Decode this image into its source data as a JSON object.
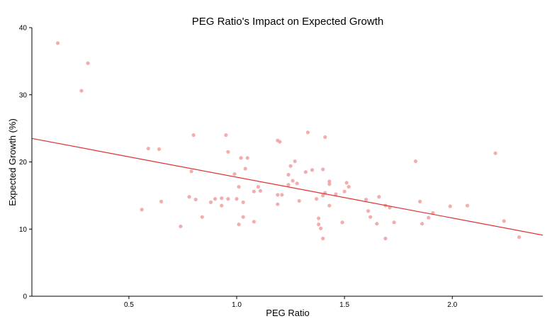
{
  "chart_data": {
    "type": "scatter",
    "title": "PEG Ratio's Impact on Expected Growth",
    "xlabel": "PEG Ratio",
    "ylabel": "Expected Growth (%)",
    "xlim": [
      0.05,
      2.42
    ],
    "ylim": [
      0,
      40
    ],
    "xticks": [
      0.5,
      1.0,
      1.5,
      2.0
    ],
    "xtick_labels": [
      "0.5",
      "1.0",
      "1.5",
      "2.0"
    ],
    "yticks": [
      0,
      10,
      20,
      30,
      40
    ],
    "ytick_labels": [
      "0",
      "10",
      "20",
      "30",
      "40"
    ],
    "grid": false,
    "point_color": "#f0a0a0",
    "line_color": "#e03030",
    "points": [
      {
        "x": 0.17,
        "y": 37.7
      },
      {
        "x": 0.31,
        "y": 34.7
      },
      {
        "x": 0.28,
        "y": 30.6
      },
      {
        "x": 0.59,
        "y": 22.0
      },
      {
        "x": 0.64,
        "y": 21.9
      },
      {
        "x": 0.8,
        "y": 24.0
      },
      {
        "x": 0.95,
        "y": 24.0
      },
      {
        "x": 0.96,
        "y": 21.5
      },
      {
        "x": 1.02,
        "y": 20.6
      },
      {
        "x": 1.05,
        "y": 20.6
      },
      {
        "x": 1.19,
        "y": 23.2
      },
      {
        "x": 1.2,
        "y": 23.0
      },
      {
        "x": 1.33,
        "y": 24.4
      },
      {
        "x": 1.41,
        "y": 23.7
      },
      {
        "x": 1.27,
        "y": 20.1
      },
      {
        "x": 1.83,
        "y": 20.1
      },
      {
        "x": 2.2,
        "y": 21.3
      },
      {
        "x": 0.79,
        "y": 18.6
      },
      {
        "x": 0.99,
        "y": 18.2
      },
      {
        "x": 1.04,
        "y": 19.0
      },
      {
        "x": 1.24,
        "y": 18.1
      },
      {
        "x": 1.25,
        "y": 19.4
      },
      {
        "x": 1.32,
        "y": 18.5
      },
      {
        "x": 1.35,
        "y": 18.8
      },
      {
        "x": 1.4,
        "y": 18.9
      },
      {
        "x": 1.26,
        "y": 17.2
      },
      {
        "x": 1.28,
        "y": 16.8
      },
      {
        "x": 1.43,
        "y": 17.1
      },
      {
        "x": 1.51,
        "y": 16.9
      },
      {
        "x": 1.43,
        "y": 16.7
      },
      {
        "x": 1.24,
        "y": 16.6
      },
      {
        "x": 1.52,
        "y": 16.3
      },
      {
        "x": 1.01,
        "y": 16.3
      },
      {
        "x": 1.1,
        "y": 16.3
      },
      {
        "x": 1.08,
        "y": 15.6
      },
      {
        "x": 1.11,
        "y": 15.7
      },
      {
        "x": 1.19,
        "y": 15.1
      },
      {
        "x": 1.21,
        "y": 15.1
      },
      {
        "x": 1.41,
        "y": 15.4
      },
      {
        "x": 1.4,
        "y": 15.0
      },
      {
        "x": 1.46,
        "y": 15.2
      },
      {
        "x": 1.5,
        "y": 15.6
      },
      {
        "x": 1.66,
        "y": 14.8
      },
      {
        "x": 0.78,
        "y": 14.8
      },
      {
        "x": 0.81,
        "y": 14.4
      },
      {
        "x": 0.9,
        "y": 14.5
      },
      {
        "x": 0.93,
        "y": 14.6
      },
      {
        "x": 0.96,
        "y": 14.5
      },
      {
        "x": 1.0,
        "y": 14.5
      },
      {
        "x": 0.65,
        "y": 14.1
      },
      {
        "x": 0.88,
        "y": 14.0
      },
      {
        "x": 1.03,
        "y": 14.0
      },
      {
        "x": 1.29,
        "y": 14.2
      },
      {
        "x": 1.37,
        "y": 14.5
      },
      {
        "x": 1.6,
        "y": 14.4
      },
      {
        "x": 1.85,
        "y": 14.1
      },
      {
        "x": 0.93,
        "y": 13.5
      },
      {
        "x": 1.19,
        "y": 13.7
      },
      {
        "x": 1.43,
        "y": 13.5
      },
      {
        "x": 1.69,
        "y": 13.5
      },
      {
        "x": 1.71,
        "y": 13.2
      },
      {
        "x": 1.99,
        "y": 13.4
      },
      {
        "x": 2.07,
        "y": 13.5
      },
      {
        "x": 0.56,
        "y": 12.9
      },
      {
        "x": 1.61,
        "y": 12.7
      },
      {
        "x": 1.91,
        "y": 12.4
      },
      {
        "x": 0.84,
        "y": 11.8
      },
      {
        "x": 1.03,
        "y": 11.8
      },
      {
        "x": 1.38,
        "y": 11.6
      },
      {
        "x": 1.62,
        "y": 11.8
      },
      {
        "x": 1.89,
        "y": 11.7
      },
      {
        "x": 1.08,
        "y": 11.1
      },
      {
        "x": 1.49,
        "y": 11.0
      },
      {
        "x": 1.73,
        "y": 11.0
      },
      {
        "x": 2.24,
        "y": 11.2
      },
      {
        "x": 1.01,
        "y": 10.7
      },
      {
        "x": 1.38,
        "y": 10.7
      },
      {
        "x": 1.65,
        "y": 10.8
      },
      {
        "x": 1.86,
        "y": 10.8
      },
      {
        "x": 0.74,
        "y": 10.4
      },
      {
        "x": 1.39,
        "y": 10.1
      },
      {
        "x": 1.4,
        "y": 8.6
      },
      {
        "x": 1.69,
        "y": 8.6
      },
      {
        "x": 2.31,
        "y": 8.8
      }
    ],
    "regression": {
      "x": [
        0.05,
        2.42
      ],
      "y": [
        23.5,
        9.1
      ]
    }
  }
}
